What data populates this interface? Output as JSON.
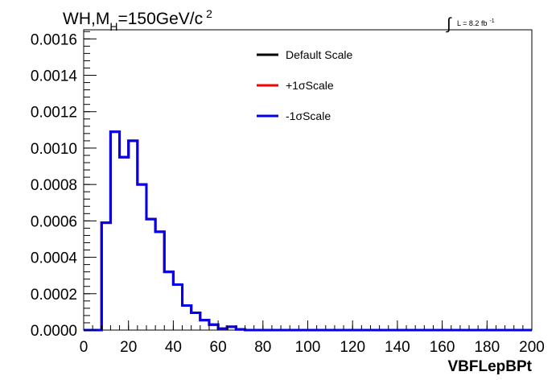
{
  "chart_data": {
    "type": "step-histogram",
    "title": "WH,M_H=150GeV/c^2",
    "title_parts": {
      "main": "WH,M",
      "sub": "H",
      "rest": "=150GeV/c",
      "sup": "2"
    },
    "lumi_label": {
      "integral": "∫",
      "text": "L = 8.2 fb",
      "sup": "-1"
    },
    "xlabel": "VBFLepBPt",
    "ylabel": "",
    "xlim": [
      0,
      200
    ],
    "ylim": [
      0,
      0.00165
    ],
    "x_ticks": [
      "0",
      "20",
      "40",
      "60",
      "80",
      "100",
      "120",
      "140",
      "160",
      "180",
      "200"
    ],
    "y_ticks": [
      "0.0000",
      "0.0002",
      "0.0004",
      "0.0006",
      "0.0008",
      "0.0010",
      "0.0012",
      "0.0014",
      "0.0016"
    ],
    "bin_width": 4,
    "x": [
      0,
      4,
      8,
      12,
      16,
      20,
      24,
      28,
      32,
      36,
      40,
      44,
      48,
      52,
      56,
      60,
      64,
      68,
      72,
      76,
      80,
      84,
      88,
      92,
      96,
      100,
      104,
      108,
      112,
      116,
      120,
      124,
      128,
      132,
      136,
      140,
      144,
      148,
      152,
      156,
      160,
      164,
      168,
      172,
      176,
      180,
      184,
      188,
      192,
      196
    ],
    "series": [
      {
        "name": "Default Scale",
        "color": "#000000",
        "values": [
          0,
          0,
          0.00059,
          0.00109,
          0.00095,
          0.00104,
          0.0008,
          0.00061,
          0.00054,
          0.00032,
          0.00025,
          0.000135,
          9.5e-05,
          5.5e-05,
          3e-05,
          8e-06,
          1.8e-05,
          4e-06,
          0,
          0,
          0,
          0,
          0,
          0,
          0,
          0,
          0,
          0,
          0,
          0,
          0,
          0,
          0,
          0,
          0,
          0,
          0,
          0,
          0,
          0,
          0,
          0,
          0,
          0,
          0,
          0,
          0,
          0,
          0,
          0
        ]
      },
      {
        "name": "+1σScale",
        "color": "#ff0000",
        "values": [
          0,
          0,
          0.00059,
          0.00109,
          0.00095,
          0.00104,
          0.0008,
          0.00061,
          0.00054,
          0.00032,
          0.00025,
          0.000135,
          9.5e-05,
          5.5e-05,
          3e-05,
          8e-06,
          1.8e-05,
          4e-06,
          0,
          0,
          0,
          0,
          0,
          0,
          0,
          0,
          0,
          0,
          0,
          0,
          0,
          0,
          0,
          0,
          0,
          0,
          0,
          0,
          0,
          0,
          0,
          0,
          0,
          0,
          0,
          0,
          0,
          0,
          0,
          0
        ]
      },
      {
        "name": "-1σScale",
        "color": "#0000ee",
        "values": [
          0,
          0,
          0.00059,
          0.00109,
          0.00095,
          0.00104,
          0.0008,
          0.00061,
          0.00054,
          0.00032,
          0.00025,
          0.000135,
          9.5e-05,
          5.5e-05,
          3e-05,
          8e-06,
          1.8e-05,
          4e-06,
          0,
          0,
          0,
          0,
          0,
          0,
          0,
          0,
          0,
          0,
          0,
          0,
          0,
          0,
          0,
          0,
          0,
          0,
          0,
          0,
          0,
          0,
          0,
          0,
          0,
          0,
          0,
          0,
          0,
          0,
          0,
          0
        ]
      }
    ],
    "legend_placement": "top-center",
    "grid": false
  }
}
